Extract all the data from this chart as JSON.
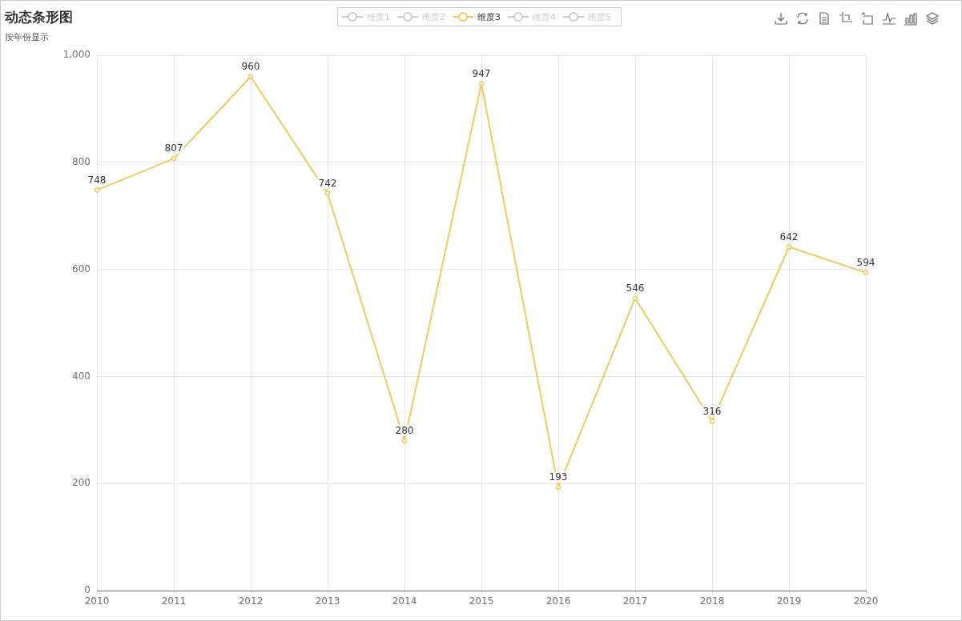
{
  "chart_data": {
    "type": "line",
    "title": "动态条形图",
    "subtitle": "按年份显示",
    "categories": [
      "2010",
      "2011",
      "2012",
      "2013",
      "2014",
      "2015",
      "2016",
      "2017",
      "2018",
      "2019",
      "2020"
    ],
    "series": [
      {
        "name": "维度1",
        "color": "#cccccc",
        "values": [
          null,
          null,
          null,
          null,
          null,
          null,
          null,
          null,
          null,
          null,
          null
        ]
      },
      {
        "name": "维度2",
        "color": "#cccccc",
        "values": [
          null,
          null,
          null,
          null,
          null,
          null,
          null,
          null,
          null,
          null,
          null
        ]
      },
      {
        "name": "维度3",
        "color": "#eecb5f",
        "values": [
          748,
          807,
          960,
          742,
          280,
          947,
          193,
          546,
          316,
          642,
          594
        ]
      },
      {
        "name": "维度4",
        "color": "#cccccc",
        "values": [
          null,
          null,
          null,
          null,
          null,
          null,
          null,
          null,
          null,
          null,
          null
        ]
      },
      {
        "name": "维度5",
        "color": "#cccccc",
        "values": [
          null,
          null,
          null,
          null,
          null,
          null,
          null,
          null,
          null,
          null,
          null
        ]
      }
    ],
    "ylim": [
      0,
      1000
    ],
    "yticks": [
      0,
      200,
      400,
      600,
      800,
      {
        "value": 1000,
        "label": "1,000"
      }
    ],
    "grid": true,
    "legend": "top",
    "marker": "circle",
    "data_labels": true
  }
}
